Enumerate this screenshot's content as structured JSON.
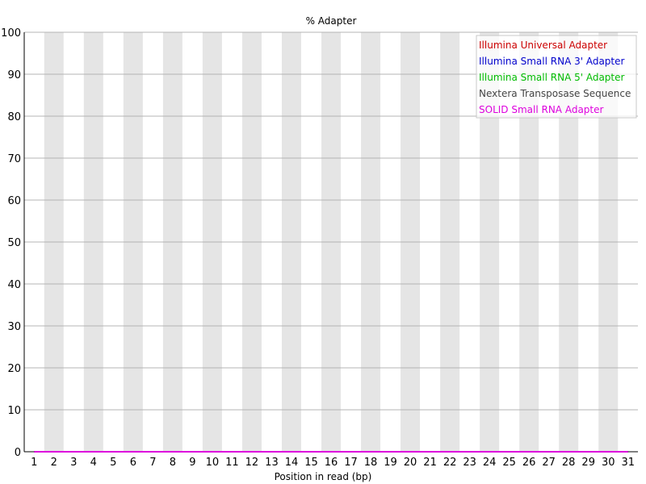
{
  "chart_data": {
    "type": "line",
    "title": "% Adapter",
    "xlabel": "Position in read (bp)",
    "ylabel": "",
    "x": [
      "1",
      "2",
      "3",
      "4",
      "5",
      "6",
      "7",
      "8",
      "9",
      "10",
      "11",
      "12",
      "13",
      "14",
      "15",
      "16",
      "17",
      "18",
      "19",
      "20",
      "21",
      "22",
      "23",
      "24",
      "25",
      "26",
      "27",
      "28",
      "29",
      "30",
      "31"
    ],
    "ylim": [
      0,
      100
    ],
    "yticks": [
      "0",
      "10",
      "20",
      "30",
      "40",
      "50",
      "60",
      "70",
      "80",
      "90",
      "100"
    ],
    "grid": true,
    "legend_position": "top-right",
    "series": [
      {
        "name": "Illumina Universal Adapter",
        "color": "#cc0000",
        "values": [
          0,
          0,
          0,
          0,
          0,
          0,
          0,
          0,
          0,
          0,
          0,
          0,
          0,
          0,
          0,
          0,
          0,
          0,
          0,
          0,
          0,
          0,
          0,
          0,
          0,
          0,
          0,
          0,
          0,
          0,
          0
        ]
      },
      {
        "name": "Illumina Small RNA 3' Adapter",
        "color": "#0000cc",
        "values": [
          0,
          0,
          0,
          0,
          0,
          0,
          0,
          0,
          0,
          0,
          0,
          0,
          0,
          0,
          0,
          0,
          0,
          0,
          0,
          0,
          0,
          0,
          0,
          0,
          0,
          0,
          0,
          0,
          0,
          0,
          0
        ]
      },
      {
        "name": "Illumina Small RNA 5' Adapter",
        "color": "#00bb00",
        "values": [
          0,
          0,
          0,
          0,
          0,
          0,
          0,
          0,
          0,
          0,
          0,
          0,
          0,
          0,
          0,
          0,
          0,
          0,
          0,
          0,
          0,
          0,
          0,
          0,
          0,
          0,
          0,
          0,
          0,
          0,
          0
        ]
      },
      {
        "name": "Nextera Transposase Sequence",
        "color": "#444444",
        "values": [
          0,
          0,
          0,
          0,
          0,
          0,
          0,
          0,
          0,
          0,
          0,
          0,
          0,
          0,
          0,
          0,
          0,
          0,
          0,
          0,
          0,
          0,
          0,
          0,
          0,
          0,
          0,
          0,
          0,
          0,
          0
        ]
      },
      {
        "name": "SOLID Small RNA Adapter",
        "color": "#dd00dd",
        "values": [
          0,
          0,
          0,
          0,
          0,
          0,
          0,
          0,
          0,
          0,
          0,
          0,
          0,
          0,
          0,
          0,
          0,
          0,
          0,
          0,
          0,
          0,
          0,
          0,
          0,
          0,
          0,
          0,
          0,
          0,
          0
        ]
      }
    ]
  }
}
